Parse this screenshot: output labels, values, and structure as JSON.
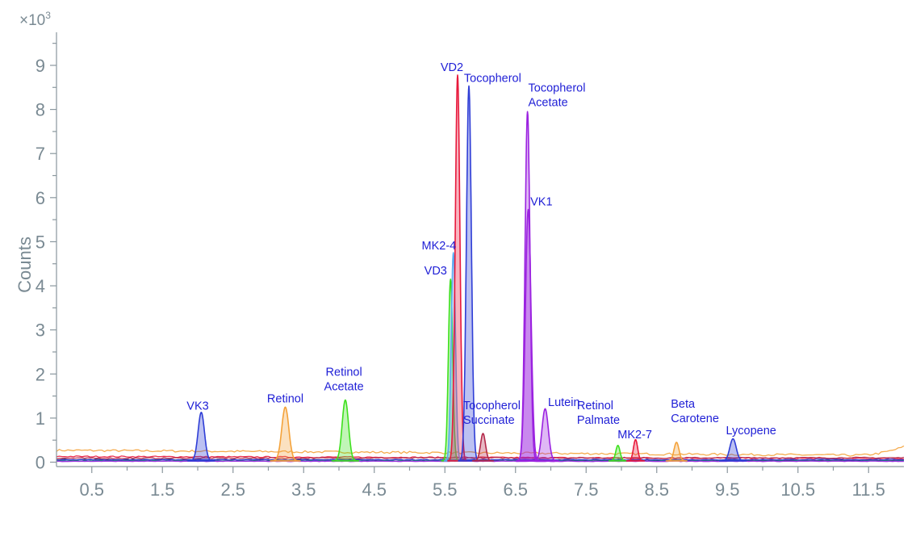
{
  "chart_data": {
    "type": "line",
    "xlabel": "",
    "ylabel": "Counts",
    "y_multiplier": "×10",
    "y_multiplier_exp": "3",
    "xlim": [
      0.0,
      12.0
    ],
    "ylim": [
      -0.1,
      9.75
    ],
    "x_ticks": [
      0.5,
      1.5,
      2.5,
      3.5,
      4.5,
      5.5,
      6.5,
      7.5,
      8.5,
      9.5,
      10.5,
      11.5
    ],
    "x_tick_labels": [
      "0.5",
      "1.5",
      "2.5",
      "3.5",
      "4.5",
      "5.5",
      "6.5",
      "7.5",
      "8.5",
      "9.5",
      "10.5",
      "11.5"
    ],
    "y_ticks": [
      0,
      1,
      2,
      3,
      4,
      5,
      6,
      7,
      8,
      9
    ],
    "y_tick_labels": [
      "0",
      "1",
      "2",
      "3",
      "4",
      "5",
      "6",
      "7",
      "8",
      "9"
    ],
    "colors": {
      "orange": "#f4a23a",
      "red": "#e8193c",
      "green": "#3ee01e",
      "blue": "#2f3ed6",
      "lightblue": "#5aa9f0",
      "purple": "#9b22e0",
      "maroon": "#b3284a",
      "navy": "#1c1f6e",
      "teal": "#1e7f7a",
      "label": "#1f1fd6",
      "axis": "#7a8a93"
    },
    "baselines": [
      {
        "color": "orange",
        "start": 0.27,
        "end": 0.15,
        "noise": 0.025,
        "tail": 0.2
      },
      {
        "color": "red",
        "start": 0.13,
        "end": 0.08,
        "noise": 0.015
      },
      {
        "color": "maroon",
        "start": 0.09,
        "end": 0.1,
        "noise": 0.015
      },
      {
        "color": "navy",
        "start": 0.06,
        "end": 0.04,
        "noise": 0.01
      },
      {
        "color": "blue",
        "start": 0.05,
        "end": 0.06,
        "noise": 0.01
      },
      {
        "color": "teal",
        "start": 0.03,
        "end": 0.03,
        "noise": 0.008
      },
      {
        "color": "purple",
        "start": 0.02,
        "end": 0.02,
        "noise": 0.006
      }
    ],
    "peaks": [
      {
        "name": "VK3",
        "color": "blue",
        "rt": 2.05,
        "height": 1.1,
        "width": 0.045
      },
      {
        "name": "Retinol",
        "color": "orange",
        "rt": 3.24,
        "height": 1.22,
        "width": 0.05
      },
      {
        "name": "Retinol Acetate",
        "color": "green",
        "rt": 4.09,
        "height": 1.38,
        "width": 0.045
      },
      {
        "name": "VD3",
        "color": "green",
        "rt": 5.58,
        "height": 4.12,
        "width": 0.03
      },
      {
        "name": "MK2-4",
        "color": "lightblue",
        "rt": 5.62,
        "height": 4.72,
        "width": 0.03
      },
      {
        "name": "VD2",
        "color": "red",
        "rt": 5.68,
        "height": 8.75,
        "width": 0.033
      },
      {
        "name": "Tocopherol",
        "color": "blue",
        "rt": 5.84,
        "height": 8.5,
        "width": 0.035
      },
      {
        "name": "Tocopherol Succinate",
        "color": "maroon",
        "rt": 6.04,
        "height": 0.62,
        "width": 0.035
      },
      {
        "name": "Tocopherol Acetate",
        "color": "purple",
        "rt": 6.67,
        "height": 7.92,
        "width": 0.035
      },
      {
        "name": "VK1",
        "color": "purple",
        "rt": 6.68,
        "height": 5.7,
        "width": 0.04
      },
      {
        "name": "Lutein",
        "color": "purple",
        "rt": 6.92,
        "height": 1.18,
        "width": 0.045
      },
      {
        "name": "Retinol Palmate",
        "color": "green",
        "rt": 7.95,
        "height": 0.35,
        "width": 0.03
      },
      {
        "name": "MK2-7",
        "color": "red",
        "rt": 8.2,
        "height": 0.48,
        "width": 0.03
      },
      {
        "name": "Beta Carotene",
        "color": "orange",
        "rt": 8.78,
        "height": 0.42,
        "width": 0.035
      },
      {
        "name": "Lycopene",
        "color": "blue",
        "rt": 9.58,
        "height": 0.5,
        "width": 0.045
      }
    ],
    "annotations": [
      {
        "lines": [
          "VK3"
        ],
        "x": 2.0,
        "y": 1.12,
        "anchor": "middle"
      },
      {
        "lines": [
          "Retinol"
        ],
        "x": 3.24,
        "y": 1.28,
        "anchor": "middle"
      },
      {
        "lines": [
          "Retinol",
          "Acetate"
        ],
        "x": 4.07,
        "y": 1.56,
        "anchor": "middle"
      },
      {
        "lines": [
          "VD2"
        ],
        "x": 5.6,
        "y": 8.8,
        "anchor": "middle"
      },
      {
        "lines": [
          "Tocopherol"
        ],
        "x": 5.77,
        "y": 8.55,
        "anchor": "start"
      },
      {
        "lines": [
          "Tocopherol",
          "Acetate"
        ],
        "x": 6.68,
        "y": 8.0,
        "anchor": "start"
      },
      {
        "lines": [
          "VK1"
        ],
        "x": 6.71,
        "y": 5.75,
        "anchor": "start"
      },
      {
        "lines": [
          "MK2-4"
        ],
        "x": 5.66,
        "y": 4.75,
        "anchor": "end"
      },
      {
        "lines": [
          "VD3"
        ],
        "x": 5.53,
        "y": 4.18,
        "anchor": "end"
      },
      {
        "lines": [
          "Tocopherol",
          "Succinate"
        ],
        "x": 5.76,
        "y": 0.8,
        "anchor": "start"
      },
      {
        "lines": [
          "Lutein"
        ],
        "x": 6.96,
        "y": 1.2,
        "anchor": "start"
      },
      {
        "lines": [
          "Retinol",
          "Palmate"
        ],
        "x": 7.37,
        "y": 0.8,
        "anchor": "start"
      },
      {
        "lines": [
          "MK2-7"
        ],
        "x": 8.19,
        "y": 0.47,
        "anchor": "middle"
      },
      {
        "lines": [
          "Beta",
          "Carotene"
        ],
        "x": 8.7,
        "y": 0.83,
        "anchor": "start"
      },
      {
        "lines": [
          "Lycopene"
        ],
        "x": 9.48,
        "y": 0.56,
        "anchor": "start"
      }
    ]
  }
}
